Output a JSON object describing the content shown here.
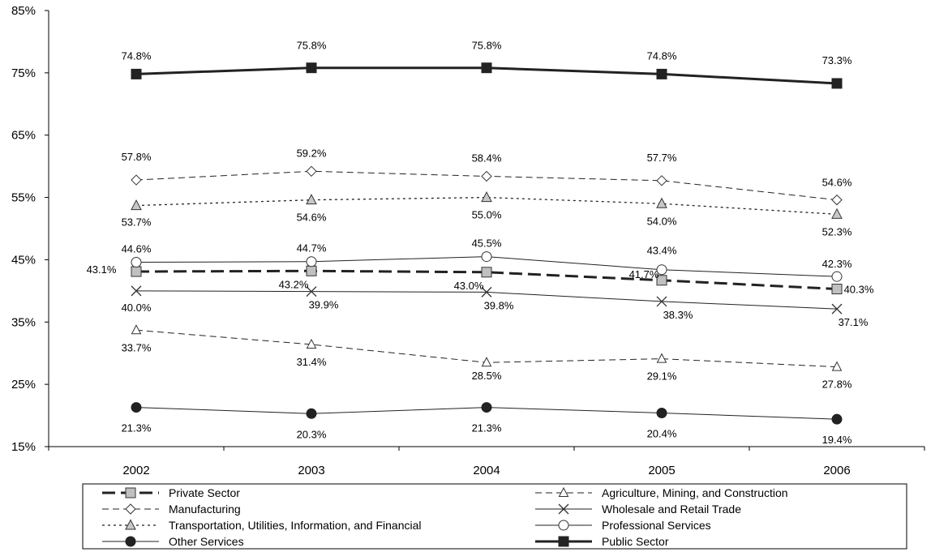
{
  "chart_data": {
    "type": "line",
    "title": "",
    "xlabel": "",
    "ylabel": "",
    "x": [
      "2002",
      "2003",
      "2004",
      "2005",
      "2006"
    ],
    "ylim": [
      15,
      85
    ],
    "y_ticks": [
      "15%",
      "25%",
      "35%",
      "45%",
      "55%",
      "65%",
      "75%",
      "85%"
    ],
    "grid": false,
    "legend_position": "bottom",
    "series": [
      {
        "name": "Private Sector",
        "values": [
          43.1,
          43.2,
          43.0,
          41.7,
          40.3
        ],
        "labels": [
          "43.1%",
          "43.2%",
          "43.0%",
          "41.7%",
          "40.3%"
        ],
        "marker": "square-gray",
        "line": "long-dash-bold"
      },
      {
        "name": "Agriculture, Mining, and Construction",
        "values": [
          33.7,
          31.4,
          28.5,
          29.1,
          27.8
        ],
        "labels": [
          "33.7%",
          "31.4%",
          "28.5%",
          "29.1%",
          "27.8%"
        ],
        "marker": "triangle-open",
        "line": "dash"
      },
      {
        "name": "Manufacturing",
        "values": [
          57.8,
          59.2,
          58.4,
          57.7,
          54.6
        ],
        "labels": [
          "57.8%",
          "59.2%",
          "58.4%",
          "57.7%",
          "54.6%"
        ],
        "marker": "diamond-open",
        "line": "dash"
      },
      {
        "name": "Wholesale and Retail Trade",
        "values": [
          40.0,
          39.9,
          39.8,
          38.3,
          37.1
        ],
        "labels": [
          "40.0%",
          "39.9%",
          "39.8%",
          "38.3%",
          "37.1%"
        ],
        "marker": "x",
        "line": "solid"
      },
      {
        "name": "Transportation, Utilities, Information, and Financial",
        "values": [
          53.7,
          54.6,
          55.0,
          54.0,
          52.3
        ],
        "labels": [
          "53.7%",
          "54.6%",
          "55.0%",
          "54.0%",
          "52.3%"
        ],
        "marker": "triangle-gray",
        "line": "dot"
      },
      {
        "name": "Professional Services",
        "values": [
          44.6,
          44.7,
          45.5,
          43.4,
          42.3
        ],
        "labels": [
          "44.6%",
          "44.7%",
          "45.5%",
          "43.4%",
          "42.3%"
        ],
        "marker": "circle-open",
        "line": "solid"
      },
      {
        "name": "Other Services",
        "values": [
          21.3,
          20.3,
          21.3,
          20.4,
          19.4
        ],
        "labels": [
          "21.3%",
          "20.3%",
          "21.3%",
          "20.4%",
          "19.4%"
        ],
        "marker": "circle-filled",
        "line": "solid"
      },
      {
        "name": "Public Sector",
        "values": [
          74.8,
          75.8,
          75.8,
          74.8,
          73.3
        ],
        "labels": [
          "74.8%",
          "75.8%",
          "75.8%",
          "74.8%",
          "73.3%"
        ],
        "marker": "square-filled",
        "line": "solid-bold"
      }
    ]
  }
}
